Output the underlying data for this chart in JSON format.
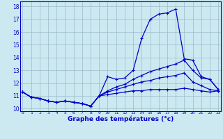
{
  "xlabel": "Graphe des températures (°c)",
  "background_color": "#cce8f0",
  "line_color": "#0000cc",
  "grid_color": "#9bbbc8",
  "hours": [
    0,
    1,
    2,
    3,
    4,
    5,
    6,
    7,
    8,
    9,
    10,
    11,
    12,
    13,
    14,
    15,
    16,
    17,
    18,
    19,
    20,
    21,
    22,
    23
  ],
  "ylim": [
    9.8,
    18.4
  ],
  "yticks": [
    10,
    11,
    12,
    13,
    14,
    15,
    16,
    17,
    18
  ],
  "xlim": [
    -0.3,
    23.3
  ],
  "line1": [
    11.3,
    10.9,
    10.8,
    10.6,
    10.5,
    10.6,
    10.5,
    10.4,
    10.2,
    11.0,
    12.5,
    12.3,
    12.4,
    13.0,
    15.5,
    17.0,
    17.4,
    17.5,
    17.8,
    13.9,
    13.8,
    12.5,
    12.3,
    11.5
  ],
  "line2": [
    11.3,
    10.9,
    10.8,
    10.6,
    10.5,
    10.6,
    10.5,
    10.4,
    10.2,
    11.0,
    11.4,
    11.7,
    11.9,
    12.3,
    12.6,
    12.9,
    13.1,
    13.3,
    13.5,
    13.8,
    13.0,
    12.4,
    12.3,
    11.5
  ],
  "line3": [
    11.3,
    10.9,
    10.8,
    10.6,
    10.5,
    10.6,
    10.5,
    10.4,
    10.2,
    11.0,
    11.3,
    11.5,
    11.7,
    11.9,
    12.1,
    12.2,
    12.4,
    12.5,
    12.6,
    12.8,
    12.1,
    11.8,
    11.5,
    11.4
  ],
  "line4": [
    11.3,
    10.9,
    10.8,
    10.6,
    10.5,
    10.6,
    10.5,
    10.4,
    10.2,
    11.0,
    11.1,
    11.2,
    11.3,
    11.4,
    11.4,
    11.5,
    11.5,
    11.5,
    11.5,
    11.6,
    11.5,
    11.4,
    11.3,
    11.4
  ],
  "bottom_bar_color": "#0000aa",
  "bottom_bar_height": 0.12
}
